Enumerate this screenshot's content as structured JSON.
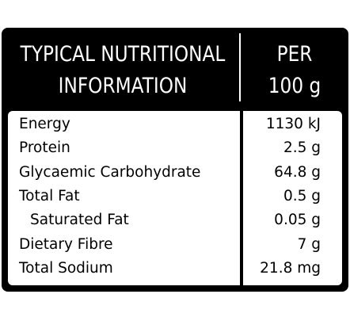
{
  "header": {
    "left": [
      "TYPICAL NUTRITIONAL",
      "INFORMATION"
    ],
    "right": [
      "PER",
      "100 g"
    ]
  },
  "table": {
    "rows": [
      [
        "Energy",
        "1130 kJ"
      ],
      [
        "Protein",
        "2.5 g"
      ],
      [
        "Glycaemic Carbohydrate",
        "64.8 g"
      ],
      [
        "Total Fat",
        "0.5 g"
      ],
      [
        "Saturated Fat",
        "0.05 g"
      ],
      [
        "Dietary Fibre",
        "7 g"
      ],
      [
        "Total Sodium",
        "21.8 mg"
      ]
    ]
  }
}
